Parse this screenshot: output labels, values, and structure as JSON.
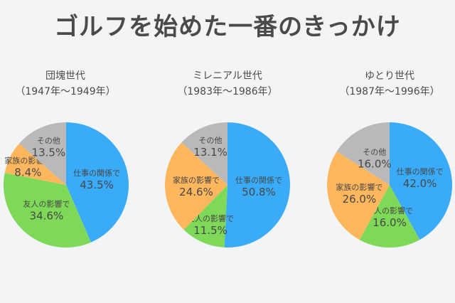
{
  "chart_data": [
    {
      "type": "pie",
      "title": "団塊世代",
      "subtitle": "（1947年〜1949年）",
      "categories": [
        "仕事の関係で",
        "友人の影響で",
        "家族の影響で",
        "その他"
      ],
      "values": [
        43.5,
        34.6,
        8.4,
        13.5
      ]
    },
    {
      "type": "pie",
      "title": "ミレニアル世代",
      "subtitle": "（1983年〜1986年）",
      "categories": [
        "仕事の関係で",
        "友人の影響で",
        "家族の影響で",
        "その他"
      ],
      "values": [
        50.8,
        11.5,
        24.6,
        13.1
      ]
    },
    {
      "type": "pie",
      "title": "ゆとり世代",
      "subtitle": "（1987年〜1996年）",
      "categories": [
        "仕事の関係で",
        "友人の影響で",
        "家族の影響で",
        "その他"
      ],
      "values": [
        42.0,
        16.0,
        26.0,
        16.0
      ]
    }
  ],
  "title": "ゴルフを始めた一番のきっかけ",
  "colors": [
    "#3aabf9",
    "#7dd957",
    "#ffb75e",
    "#b9b9b9"
  ]
}
